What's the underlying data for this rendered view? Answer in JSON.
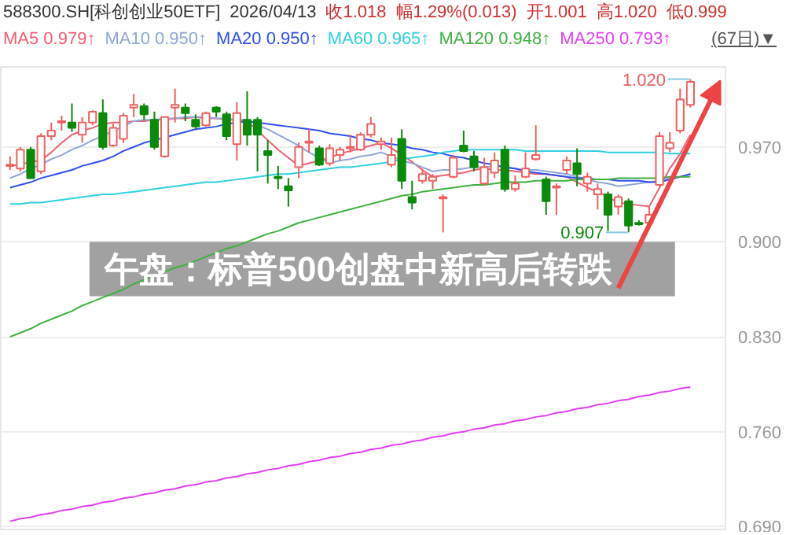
{
  "chart_data": {
    "type": "candlestick",
    "title": "588300.SH[科创创业50ETF]",
    "subtitle": "2026/04/13",
    "categories": [
      null,
      null,
      null,
      null,
      null,
      null,
      null,
      null,
      null,
      null,
      null,
      null,
      null,
      null,
      null,
      null,
      null,
      null,
      null,
      null,
      null,
      null,
      null,
      null,
      null,
      null,
      null,
      null,
      null,
      null,
      null,
      null,
      null,
      null,
      null,
      null,
      null,
      null,
      null,
      null,
      null,
      null,
      null,
      null,
      null,
      null,
      null,
      null,
      null,
      null,
      null,
      null,
      null,
      null,
      null,
      null,
      null,
      null,
      null,
      null,
      null,
      null,
      null,
      null,
      null,
      null,
      null
    ],
    "ohlc": [
      [
        0.956,
        0.963,
        0.953,
        0.957
      ],
      [
        0.954,
        0.97,
        0.952,
        0.968
      ],
      [
        0.968,
        0.97,
        0.947,
        0.947
      ],
      [
        0.952,
        0.98,
        0.95,
        0.978
      ],
      [
        0.978,
        0.988,
        0.975,
        0.982
      ],
      [
        0.988,
        0.993,
        0.982,
        0.989
      ],
      [
        0.988,
        1.002,
        0.981,
        0.984
      ],
      [
        0.979,
        0.992,
        0.973,
        0.988
      ],
      [
        0.988,
        0.997,
        0.986,
        0.996
      ],
      [
        0.995,
        1.005,
        0.968,
        0.97
      ],
      [
        0.971,
        0.987,
        0.97,
        0.984
      ],
      [
        0.976,
        0.995,
        0.973,
        0.993
      ],
      [
        0.999,
        1.009,
        0.992,
        1.001
      ],
      [
        1.0,
        1.002,
        0.99,
        0.994
      ],
      [
        0.99,
        0.996,
        0.968,
        0.97
      ],
      [
        0.963,
        0.992,
        0.962,
        0.992
      ],
      [
        0.999,
        1.013,
        0.988,
        1.001
      ],
      [
        0.999,
        1.002,
        0.989,
        0.995
      ],
      [
        0.99,
        0.994,
        0.983,
        0.985
      ],
      [
        0.986,
        0.996,
        0.985,
        0.995
      ],
      [
        0.999,
        1.0,
        0.992,
        0.996
      ],
      [
        0.994,
        0.996,
        0.975,
        0.978
      ],
      [
        0.972,
        1.003,
        0.96,
        0.995
      ],
      [
        0.99,
        1.011,
        0.971,
        0.979
      ],
      [
        0.99,
        0.992,
        0.952,
        0.979
      ],
      [
        0.967,
        0.975,
        0.943,
        0.964
      ],
      [
        0.948,
        0.956,
        0.939,
        0.947
      ],
      [
        0.941,
        0.947,
        0.926,
        0.938
      ],
      [
        0.955,
        0.973,
        0.947,
        0.97
      ],
      [
        0.973,
        0.983,
        0.966,
        0.974
      ],
      [
        0.969,
        0.971,
        0.956,
        0.957
      ],
      [
        0.958,
        0.972,
        0.956,
        0.969
      ],
      [
        0.964,
        0.97,
        0.96,
        0.968
      ],
      [
        0.969,
        0.979,
        0.966,
        0.97
      ],
      [
        0.968,
        0.981,
        0.967,
        0.979
      ],
      [
        0.979,
        0.992,
        0.977,
        0.987
      ],
      [
        0.972,
        0.977,
        0.968,
        0.974
      ],
      [
        0.957,
        0.977,
        0.955,
        0.964
      ],
      [
        0.976,
        0.983,
        0.939,
        0.945
      ],
      [
        0.933,
        0.945,
        0.924,
        0.929
      ],
      [
        0.945,
        0.954,
        0.943,
        0.95
      ],
      [
        0.945,
        0.95,
        0.939,
        0.948
      ],
      [
        0.932,
        0.935,
        0.907,
        0.933
      ],
      [
        0.948,
        0.964,
        0.947,
        0.962
      ],
      [
        0.971,
        0.982,
        0.966,
        0.967
      ],
      [
        0.963,
        0.967,
        0.952,
        0.955
      ],
      [
        0.943,
        0.962,
        0.942,
        0.955
      ],
      [
        0.951,
        0.966,
        0.947,
        0.96
      ],
      [
        0.968,
        0.971,
        0.937,
        0.939
      ],
      [
        0.939,
        0.949,
        0.937,
        0.943
      ],
      [
        0.948,
        0.966,
        0.947,
        0.954
      ],
      [
        0.961,
        0.986,
        0.96,
        0.964
      ],
      [
        0.946,
        0.948,
        0.92,
        0.93
      ],
      [
        0.94,
        0.943,
        0.92,
        0.941
      ],
      [
        0.953,
        0.963,
        0.95,
        0.96
      ],
      [
        0.958,
        0.969,
        0.941,
        0.95
      ],
      [
        0.943,
        0.951,
        0.937,
        0.948
      ],
      [
        0.935,
        0.943,
        0.924,
        0.939
      ],
      [
        0.935,
        0.937,
        0.908,
        0.92
      ],
      [
        0.926,
        0.935,
        0.92,
        0.933
      ],
      [
        0.93,
        0.932,
        0.907,
        0.912
      ],
      [
        0.914,
        0.916,
        0.912,
        0.913
      ],
      [
        0.914,
        0.926,
        0.912,
        0.92
      ],
      [
        0.942,
        0.981,
        0.941,
        0.978
      ],
      [
        0.969,
        0.981,
        0.966,
        0.973
      ],
      [
        0.982,
        1.013,
        0.98,
        1.005
      ],
      [
        1.001,
        1.02,
        0.999,
        1.018
      ]
    ],
    "series": [
      {
        "name": "MA5 0.979↑",
        "type": "line",
        "color": "#f06070",
        "values": [
          0.956,
          0.957,
          0.959,
          0.96,
          0.966,
          0.973,
          0.979,
          0.982,
          0.984,
          0.987,
          0.988,
          0.988,
          0.989,
          0.989,
          0.99,
          0.99,
          0.991,
          0.991,
          0.992,
          0.991,
          0.991,
          0.99,
          0.99,
          0.989,
          0.982,
          0.975,
          0.968,
          0.962,
          0.956,
          0.958,
          0.96,
          0.962,
          0.965,
          0.967,
          0.969,
          0.971,
          0.973,
          0.969,
          0.964,
          0.959,
          0.953,
          0.948,
          0.949,
          0.95,
          0.951,
          0.953,
          0.954,
          0.953,
          0.953,
          0.952,
          0.951,
          0.95,
          0.95,
          0.949,
          0.948,
          0.944,
          0.94,
          0.937,
          0.933,
          0.929,
          0.928,
          0.927,
          0.926,
          0.94,
          0.954,
          0.965,
          0.979
        ]
      },
      {
        "name": "MA10 0.950↑",
        "type": "line",
        "color": "#8fa8d8",
        "values": [
          0.947,
          0.95,
          0.954,
          0.957,
          0.961,
          0.964,
          0.968,
          0.971,
          0.975,
          0.978,
          0.982,
          0.985,
          0.989,
          0.99,
          0.99,
          0.991,
          0.991,
          0.992,
          0.992,
          0.992,
          0.991,
          0.991,
          0.99,
          0.99,
          0.986,
          0.983,
          0.979,
          0.975,
          0.971,
          0.966,
          0.962,
          0.958,
          0.96,
          0.961,
          0.963,
          0.964,
          0.966,
          0.963,
          0.96,
          0.958,
          0.955,
          0.952,
          0.953,
          0.953,
          0.954,
          0.955,
          0.955,
          0.956,
          0.955,
          0.954,
          0.953,
          0.953,
          0.952,
          0.951,
          0.95,
          0.948,
          0.946,
          0.944,
          0.943,
          0.941,
          0.942,
          0.943,
          0.944,
          0.945,
          0.947,
          0.948,
          0.95
        ]
      },
      {
        "name": "MA20 0.950↑",
        "type": "line",
        "color": "#3050f0",
        "values": [
          0.94,
          0.942,
          0.944,
          0.947,
          0.949,
          0.951,
          0.953,
          0.956,
          0.958,
          0.96,
          0.963,
          0.967,
          0.97,
          0.973,
          0.975,
          0.977,
          0.979,
          0.981,
          0.983,
          0.984,
          0.985,
          0.987,
          0.988,
          0.989,
          0.988,
          0.987,
          0.986,
          0.985,
          0.984,
          0.983,
          0.982,
          0.98,
          0.979,
          0.978,
          0.976,
          0.975,
          0.973,
          0.972,
          0.971,
          0.969,
          0.968,
          0.966,
          0.965,
          0.963,
          0.962,
          0.96,
          0.958,
          0.957,
          0.955,
          0.954,
          0.952,
          0.951,
          0.95,
          0.949,
          0.948,
          0.947,
          0.947,
          0.946,
          0.946,
          0.945,
          0.945,
          0.945,
          0.944,
          0.944,
          0.946,
          0.948,
          0.95
        ]
      },
      {
        "name": "MA60 0.965↑",
        "type": "line",
        "color": "#30d0e0",
        "values": [
          0.928,
          0.928,
          0.929,
          0.929,
          0.93,
          0.931,
          0.932,
          0.933,
          0.934,
          0.935,
          0.935,
          0.936,
          0.937,
          0.938,
          0.939,
          0.94,
          0.941,
          0.942,
          0.943,
          0.944,
          0.944,
          0.945,
          0.946,
          0.947,
          0.948,
          0.949,
          0.95,
          0.95,
          0.951,
          0.952,
          0.953,
          0.954,
          0.955,
          0.955,
          0.956,
          0.957,
          0.958,
          0.959,
          0.961,
          0.962,
          0.963,
          0.964,
          0.966,
          0.967,
          0.968,
          0.968,
          0.968,
          0.968,
          0.968,
          0.968,
          0.967,
          0.967,
          0.967,
          0.967,
          0.967,
          0.967,
          0.967,
          0.967,
          0.966,
          0.966,
          0.966,
          0.966,
          0.966,
          0.966,
          0.965,
          0.965,
          0.965
        ]
      },
      {
        "name": "MA120 0.948↑",
        "type": "line",
        "color": "#40b040",
        "values": [
          0.83,
          0.833,
          0.836,
          0.84,
          0.843,
          0.846,
          0.849,
          0.853,
          0.856,
          0.859,
          0.862,
          0.865,
          0.869,
          0.872,
          0.875,
          0.878,
          0.881,
          0.883,
          0.886,
          0.889,
          0.892,
          0.895,
          0.897,
          0.9,
          0.903,
          0.906,
          0.908,
          0.911,
          0.914,
          0.916,
          0.918,
          0.92,
          0.922,
          0.924,
          0.926,
          0.928,
          0.93,
          0.932,
          0.934,
          0.935,
          0.937,
          0.938,
          0.939,
          0.94,
          0.941,
          0.942,
          0.942,
          0.943,
          0.944,
          0.944,
          0.944,
          0.945,
          0.945,
          0.945,
          0.945,
          0.946,
          0.946,
          0.946,
          0.946,
          0.947,
          0.947,
          0.947,
          0.947,
          0.947,
          0.948,
          0.948,
          0.948
        ]
      },
      {
        "name": "MA250 0.793↑",
        "type": "line",
        "color": "#e040f0",
        "values": [
          0.694,
          0.696,
          0.697,
          0.699,
          0.7,
          0.702,
          0.703,
          0.705,
          0.706,
          0.708,
          0.709,
          0.711,
          0.712,
          0.714,
          0.715,
          0.717,
          0.718,
          0.72,
          0.721,
          0.723,
          0.724,
          0.726,
          0.727,
          0.729,
          0.73,
          0.732,
          0.733,
          0.735,
          0.736,
          0.738,
          0.739,
          0.741,
          0.742,
          0.744,
          0.745,
          0.747,
          0.748,
          0.75,
          0.751,
          0.753,
          0.754,
          0.756,
          0.757,
          0.759,
          0.76,
          0.762,
          0.763,
          0.765,
          0.766,
          0.768,
          0.769,
          0.771,
          0.772,
          0.774,
          0.775,
          0.777,
          0.778,
          0.78,
          0.781,
          0.783,
          0.784,
          0.786,
          0.787,
          0.789,
          0.79,
          0.792,
          0.793
        ]
      }
    ],
    "ylim": [
      0.688,
      1.029
    ],
    "yticks": [
      {
        "value": 0.97,
        "label": "0.970"
      },
      {
        "value": 0.9,
        "label": "0.900"
      },
      {
        "value": 0.83,
        "label": "0.830"
      },
      {
        "value": 0.76,
        "label": "0.760"
      },
      {
        "value": 0.69,
        "label": "0.690"
      }
    ],
    "grid": "y",
    "legend": "top left",
    "tick_labels": "y",
    "annotations": [
      "收1.018",
      "幅1.29%(0.013)",
      "开1.001",
      "高1.020",
      "低0.999",
      "(67日)▼",
      "1.020",
      "0.907",
      "午盘：标普500创盘中新高后转跌"
    ]
  }
}
